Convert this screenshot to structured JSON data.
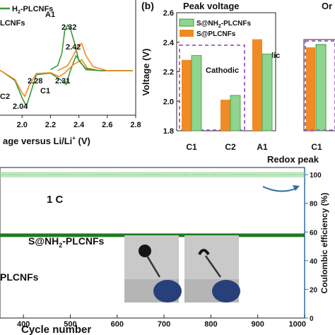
{
  "colors": {
    "green": "#3a9a3a",
    "green_dark": "#1f7a1f",
    "orange": "#f08a24",
    "purple": "#9b59d0",
    "blue": "#2e6da4",
    "ce_green": "#8fd48f"
  },
  "chart_data": [
    {
      "id": "a",
      "type": "line",
      "xlabel": "age versus Li/Li",
      "xlabel_sup": "+",
      "xlabel_unit": " (V)",
      "xlim": [
        1.72,
        2.8
      ],
      "x_ticks": [
        "2.0",
        "2.2",
        "2.4",
        "2.6",
        "2.8"
      ],
      "x_tick_values": [
        2.0,
        2.2,
        2.4,
        2.6,
        2.8
      ],
      "legend": [
        "-PLCNFs",
        "LCNFs"
      ],
      "legend_prefix_green": "H",
      "legend_sub": "2",
      "series": [
        {
          "name": "S@NH2-PLCNFs",
          "color": "green",
          "x": [
            1.72,
            1.85,
            1.95,
            2.0,
            2.03,
            2.06,
            2.1,
            2.2,
            2.28,
            2.31,
            2.34,
            2.38,
            2.45,
            2.55,
            2.7,
            2.78
          ],
          "y": [
            0.0,
            0.0,
            -0.2,
            -0.55,
            -0.72,
            -0.45,
            -0.08,
            -0.05,
            -0.2,
            -0.28,
            0.0,
            0.3,
            0.02,
            0.0,
            0.0,
            0.0
          ]
        },
        {
          "name": "S@PLCNFs",
          "color": "orange",
          "x": [
            1.72,
            1.85,
            1.95,
            2.0,
            2.02,
            2.05,
            2.1,
            2.2,
            2.26,
            2.3,
            2.36,
            2.42,
            2.46,
            2.55,
            2.7,
            2.78
          ],
          "y": [
            0.0,
            0.0,
            -0.18,
            -0.45,
            -0.52,
            -0.3,
            -0.06,
            -0.04,
            -0.12,
            -0.05,
            0.12,
            0.22,
            0.05,
            0.0,
            0.0,
            0.0
          ]
        },
        {
          "name": "S@NH2-PLCNFs upper",
          "color": "green",
          "x": [
            2.2,
            2.25,
            2.28,
            2.3,
            2.32,
            2.34,
            2.37,
            2.4,
            2.45,
            2.55,
            2.7,
            2.78
          ],
          "y": [
            0.02,
            0.1,
            0.35,
            0.8,
            0.92,
            0.85,
            0.55,
            0.2,
            0.04,
            0.0,
            0.0,
            0.0
          ]
        },
        {
          "name": "S@PLCNFs upper",
          "color": "orange",
          "x": [
            2.25,
            2.32,
            2.36,
            2.4,
            2.42,
            2.45,
            2.5,
            2.6,
            2.78
          ],
          "y": [
            0.0,
            0.1,
            0.3,
            0.52,
            0.55,
            0.3,
            0.08,
            0.0,
            0.0
          ]
        }
      ],
      "annotations": [
        {
          "text": "A1",
          "color": "dark"
        },
        {
          "text": "2.32",
          "color": "green"
        },
        {
          "text": "2.42",
          "color": "orange"
        },
        {
          "text": "2.28",
          "color": "orange"
        },
        {
          "text": "C1",
          "color": "dark"
        },
        {
          "text": "2.31",
          "color": "green"
        },
        {
          "text": "2.04",
          "color": "green"
        },
        {
          "text": "C2",
          "color": "dark"
        }
      ]
    },
    {
      "id": "b",
      "type": "bar",
      "panel_label": "(b)",
      "title": "Peak voltage",
      "ylabel": "Voltage (V)",
      "xlabel": "Redox peak",
      "ylim": [
        1.8,
        2.6
      ],
      "y_ticks": [
        "1.8",
        "2.0",
        "2.2",
        "2.4",
        "2.6"
      ],
      "y_tick_values": [
        1.8,
        2.0,
        2.2,
        2.4,
        2.6
      ],
      "categories": [
        "C1",
        "C2",
        "A1"
      ],
      "series": [
        {
          "name": "S@PLCNFs",
          "color": "orange",
          "values": [
            2.28,
            2.01,
            2.42
          ]
        },
        {
          "name": "S@NH2-PLCNFs",
          "color": "green",
          "values": [
            2.31,
            2.04,
            2.32
          ]
        }
      ],
      "legend": [
        {
          "text": "S@NH",
          "sub": "2",
          "rest": "-PLCNFs",
          "color": "green"
        },
        {
          "text": "S@PLCNFs",
          "sub": "",
          "rest": "",
          "color": "orange"
        }
      ],
      "annotations": [
        "Cathodic",
        "Anodic"
      ],
      "side_title": "Or",
      "side_category": "C1"
    },
    {
      "id": "c",
      "type": "line",
      "xlabel": "Cycle number",
      "xlim": [
        350,
        1000
      ],
      "x_ticks": [
        "400",
        "500",
        "600",
        "700",
        "800",
        "900",
        "1000"
      ],
      "x_tick_values": [
        400,
        500,
        600,
        700,
        800,
        900,
        1000
      ],
      "ylabel_right": "Coulombic efficiency (%)",
      "ylim_right": [
        0,
        105
      ],
      "y_right_ticks": [
        "0",
        "20",
        "40",
        "60",
        "80",
        "100"
      ],
      "y_right_tick_values": [
        0,
        20,
        40,
        60,
        80,
        100
      ],
      "rate_label": "1 C",
      "series": [
        {
          "name": "Coulombic efficiency",
          "color": "ce_green",
          "axis": "right",
          "x_range": [
            350,
            1000
          ],
          "value": 100
        },
        {
          "name": "S@NH2-PLCNFs",
          "color": "green_dark",
          "axis": "left",
          "x_range": [
            350,
            1000
          ],
          "value_fraction": 0.55
        }
      ],
      "labels": [
        {
          "prefix": "S@NH",
          "sub": "2",
          "rest": "-PLCNFs",
          "color": "green_dark"
        },
        {
          "prefix": "PLCNFs",
          "sub": "",
          "rest": "",
          "color": "orange"
        }
      ]
    }
  ]
}
